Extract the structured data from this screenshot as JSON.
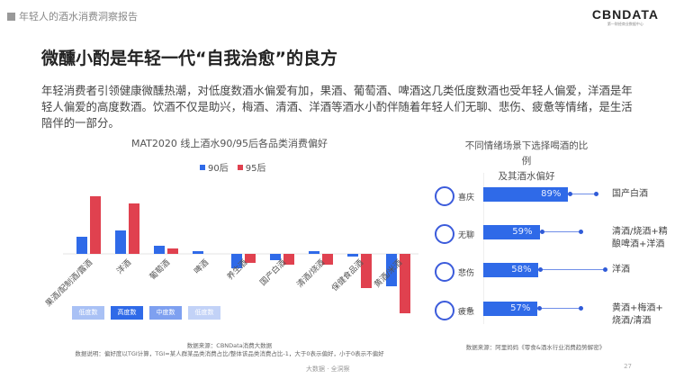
{
  "header": {
    "report_title": "年轻人的酒水消费洞察报告",
    "logo": "CBNDATA",
    "logo_sub": "第一财经商业数据中心"
  },
  "title": "微醺小酌是年轻一代“自我治愈”的良方",
  "description": "年轻消费者引领健康微醺热潮，对低度数酒水偏爱有加，果酒、葡萄酒、啤酒这几类低度数酒也受年轻人偏爱，洋酒是年轻人偏爱的高度数酒。饮酒不仅是助兴，梅酒、清酒、洋酒等酒水小酌伴随着年轻人们无聊、悲伤、疲惫等情绪，是生活陪伴的一部分。",
  "chart_data": [
    {
      "type": "bar",
      "title": "MAT2020 线上酒水90/95后各品类消费偏好",
      "categories": [
        "果酒/配制酒/露酒",
        "洋酒",
        "葡萄酒",
        "啤酒",
        "养生酒",
        "国产白酒",
        "清酒/烧酒",
        "保健食品酒",
        "黄酒/米酒"
      ],
      "series": [
        {
          "name": "90后",
          "color": "#2f6ae8",
          "values": [
            19,
            26,
            9,
            3,
            -16,
            -7,
            3,
            -3,
            -36
          ]
        },
        {
          "name": "95后",
          "color": "#e0414f",
          "values": [
            64,
            56,
            6,
            0,
            -10,
            -12,
            -12,
            -38,
            -66
          ]
        }
      ],
      "badges": [
        {
          "label": "低度数",
          "color": "#a9c1f5"
        },
        {
          "label": "高度数",
          "color": "#2f6ae8"
        },
        {
          "label": "中度数",
          "color": "#7ea0f0"
        },
        {
          "label": "低度数",
          "color": "#c2d2f7"
        }
      ],
      "source": "数据来源：CBNData消费大数据",
      "note": "数据说明：偏好度以TGI计算，TGI=某人群某品类消费占比/整体该品类消费占比-1，大于0表示偏好，小于0表示不偏好"
    },
    {
      "type": "bar",
      "title_line1": "不同情绪场景下选择喝酒的比例",
      "title_line2": "及其酒水偏好",
      "rows": [
        {
          "emotion": "喜庆",
          "face": "happy-face-icon",
          "value": 89,
          "label": "89%",
          "pref": [
            "国产白酒"
          ]
        },
        {
          "emotion": "无聊",
          "face": "bored-face-icon",
          "value": 59,
          "label": "59%",
          "pref": [
            "清酒/烧酒+精",
            "酿啤酒+洋酒"
          ]
        },
        {
          "emotion": "悲伤",
          "face": "sad-face-icon",
          "value": 58,
          "label": "58%",
          "pref": [
            "洋酒"
          ]
        },
        {
          "emotion": "疲惫",
          "face": "tired-face-icon",
          "value": 57,
          "label": "57%",
          "pref": [
            "黄酒+梅酒+",
            "烧酒/清酒"
          ]
        }
      ],
      "source": "数据来源：阿里妈妈《零食&酒水行业消费趋势解密》"
    }
  ],
  "footer": {
    "text": "大数据 · 全洞察",
    "page": "27"
  }
}
